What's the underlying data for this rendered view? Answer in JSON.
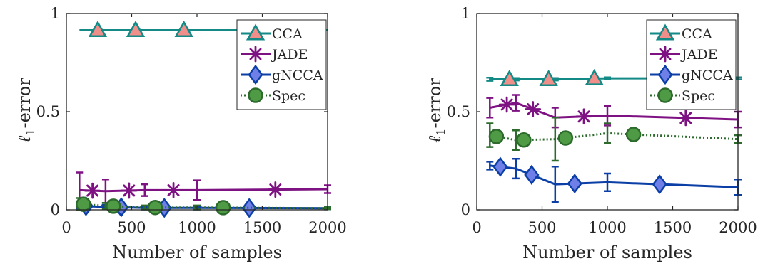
{
  "colors": {
    "CCA": "#138a86",
    "CCA_marker_fill": "#f08f8a",
    "JADE": "#7f1283",
    "gNCCA": "#0b3fa6",
    "gNCCA_marker_fill": "#6f7fe8",
    "Spec": "#2d6b2d",
    "Spec_marker_fill": "#4f9b45",
    "axis": "#262626"
  },
  "chart_data": [
    {
      "type": "line",
      "xlabel": "Number of samples",
      "ylabel": "ℓ1-error",
      "ylabel_main": "ℓ",
      "ylabel_sub": "1",
      "ylabel_rest": "-error",
      "xlim": [
        0,
        2000
      ],
      "ylim": [
        0,
        1
      ],
      "xticks": [
        0,
        500,
        1000,
        1500,
        2000
      ],
      "xtick_labels": [
        "0",
        "500",
        "1000",
        "1500",
        "2000"
      ],
      "yticks": [
        0,
        0.5,
        1
      ],
      "ytick_labels": [
        "0",
        "0.5",
        "1"
      ],
      "grid": false,
      "legend_position": "top-right",
      "x": [
        100,
        300,
        600,
        1000,
        2000
      ],
      "series": [
        {
          "name": "CCA",
          "key": "CCA",
          "marker": "triangle",
          "dash": "",
          "values": [
            0.915,
            0.915,
            0.915,
            0.915,
            0.915
          ],
          "err": [
            0,
            0,
            0,
            0,
            0
          ],
          "marker_x": [
            240,
            530,
            900,
            1800
          ]
        },
        {
          "name": "JADE",
          "key": "JADE",
          "marker": "asterisk",
          "dash": "",
          "values": [
            0.1,
            0.095,
            0.1,
            0.1,
            0.105
          ],
          "err": [
            0.09,
            0.06,
            0.03,
            0.05,
            0.02
          ],
          "marker_x": [
            200,
            480,
            820,
            1600
          ]
        },
        {
          "name": "gNCCA",
          "key": "gNCCA",
          "marker": "diamond",
          "dash": "",
          "values": [
            0.02,
            0.015,
            0.01,
            0.01,
            0.008
          ],
          "err": [
            0.015,
            0.01,
            0.008,
            0.008,
            0.005
          ],
          "marker_x": [
            150,
            420,
            750,
            1400
          ]
        },
        {
          "name": "Spec",
          "key": "Spec",
          "marker": "circle",
          "dash": "2 3",
          "values": [
            0.03,
            0.02,
            0.012,
            0.012,
            0.008
          ],
          "err": [
            0.03,
            0.015,
            0.01,
            0.01,
            0.005
          ],
          "marker_x": [
            130,
            360,
            680,
            1200
          ]
        }
      ]
    },
    {
      "type": "line",
      "xlabel": "Number of samples",
      "ylabel": "ℓ1-error",
      "ylabel_main": "ℓ",
      "ylabel_sub": "1",
      "ylabel_rest": "-error",
      "xlim": [
        0,
        2000
      ],
      "ylim": [
        0,
        1
      ],
      "xticks": [
        0,
        500,
        1000,
        1500,
        2000
      ],
      "xtick_labels": [
        "0",
        "500",
        "1000",
        "1500",
        "2000"
      ],
      "yticks": [
        0,
        0.5,
        1
      ],
      "ytick_labels": [
        "0",
        "0.5",
        "1"
      ],
      "grid": false,
      "legend_position": "top-right",
      "x": [
        100,
        300,
        600,
        1000,
        2000
      ],
      "series": [
        {
          "name": "CCA",
          "key": "CCA",
          "marker": "triangle",
          "dash": "",
          "values": [
            0.665,
            0.665,
            0.665,
            0.67,
            0.67
          ],
          "err": [
            0.008,
            0.006,
            0.006,
            0.005,
            0.005
          ],
          "marker_x": [
            250,
            550,
            900,
            1400
          ]
        },
        {
          "name": "JADE",
          "key": "JADE",
          "marker": "asterisk",
          "dash": "",
          "values": [
            0.52,
            0.545,
            0.47,
            0.48,
            0.46
          ],
          "err": [
            0.05,
            0.04,
            0.05,
            0.05,
            0.04
          ],
          "marker_x": [
            230,
            430,
            820,
            1600
          ]
        },
        {
          "name": "gNCCA",
          "key": "gNCCA",
          "marker": "diamond",
          "dash": "",
          "values": [
            0.225,
            0.21,
            0.13,
            0.14,
            0.115
          ],
          "err": [
            0.02,
            0.05,
            0.09,
            0.045,
            0.04
          ],
          "marker_x": [
            180,
            420,
            750,
            1400
          ]
        },
        {
          "name": "Spec",
          "key": "Spec",
          "marker": "circle",
          "dash": "2 3",
          "values": [
            0.38,
            0.355,
            0.36,
            0.39,
            0.36
          ],
          "err": [
            0.06,
            0.05,
            0.11,
            0.05,
            0.02
          ],
          "marker_x": [
            150,
            360,
            680,
            1200
          ]
        }
      ]
    }
  ]
}
